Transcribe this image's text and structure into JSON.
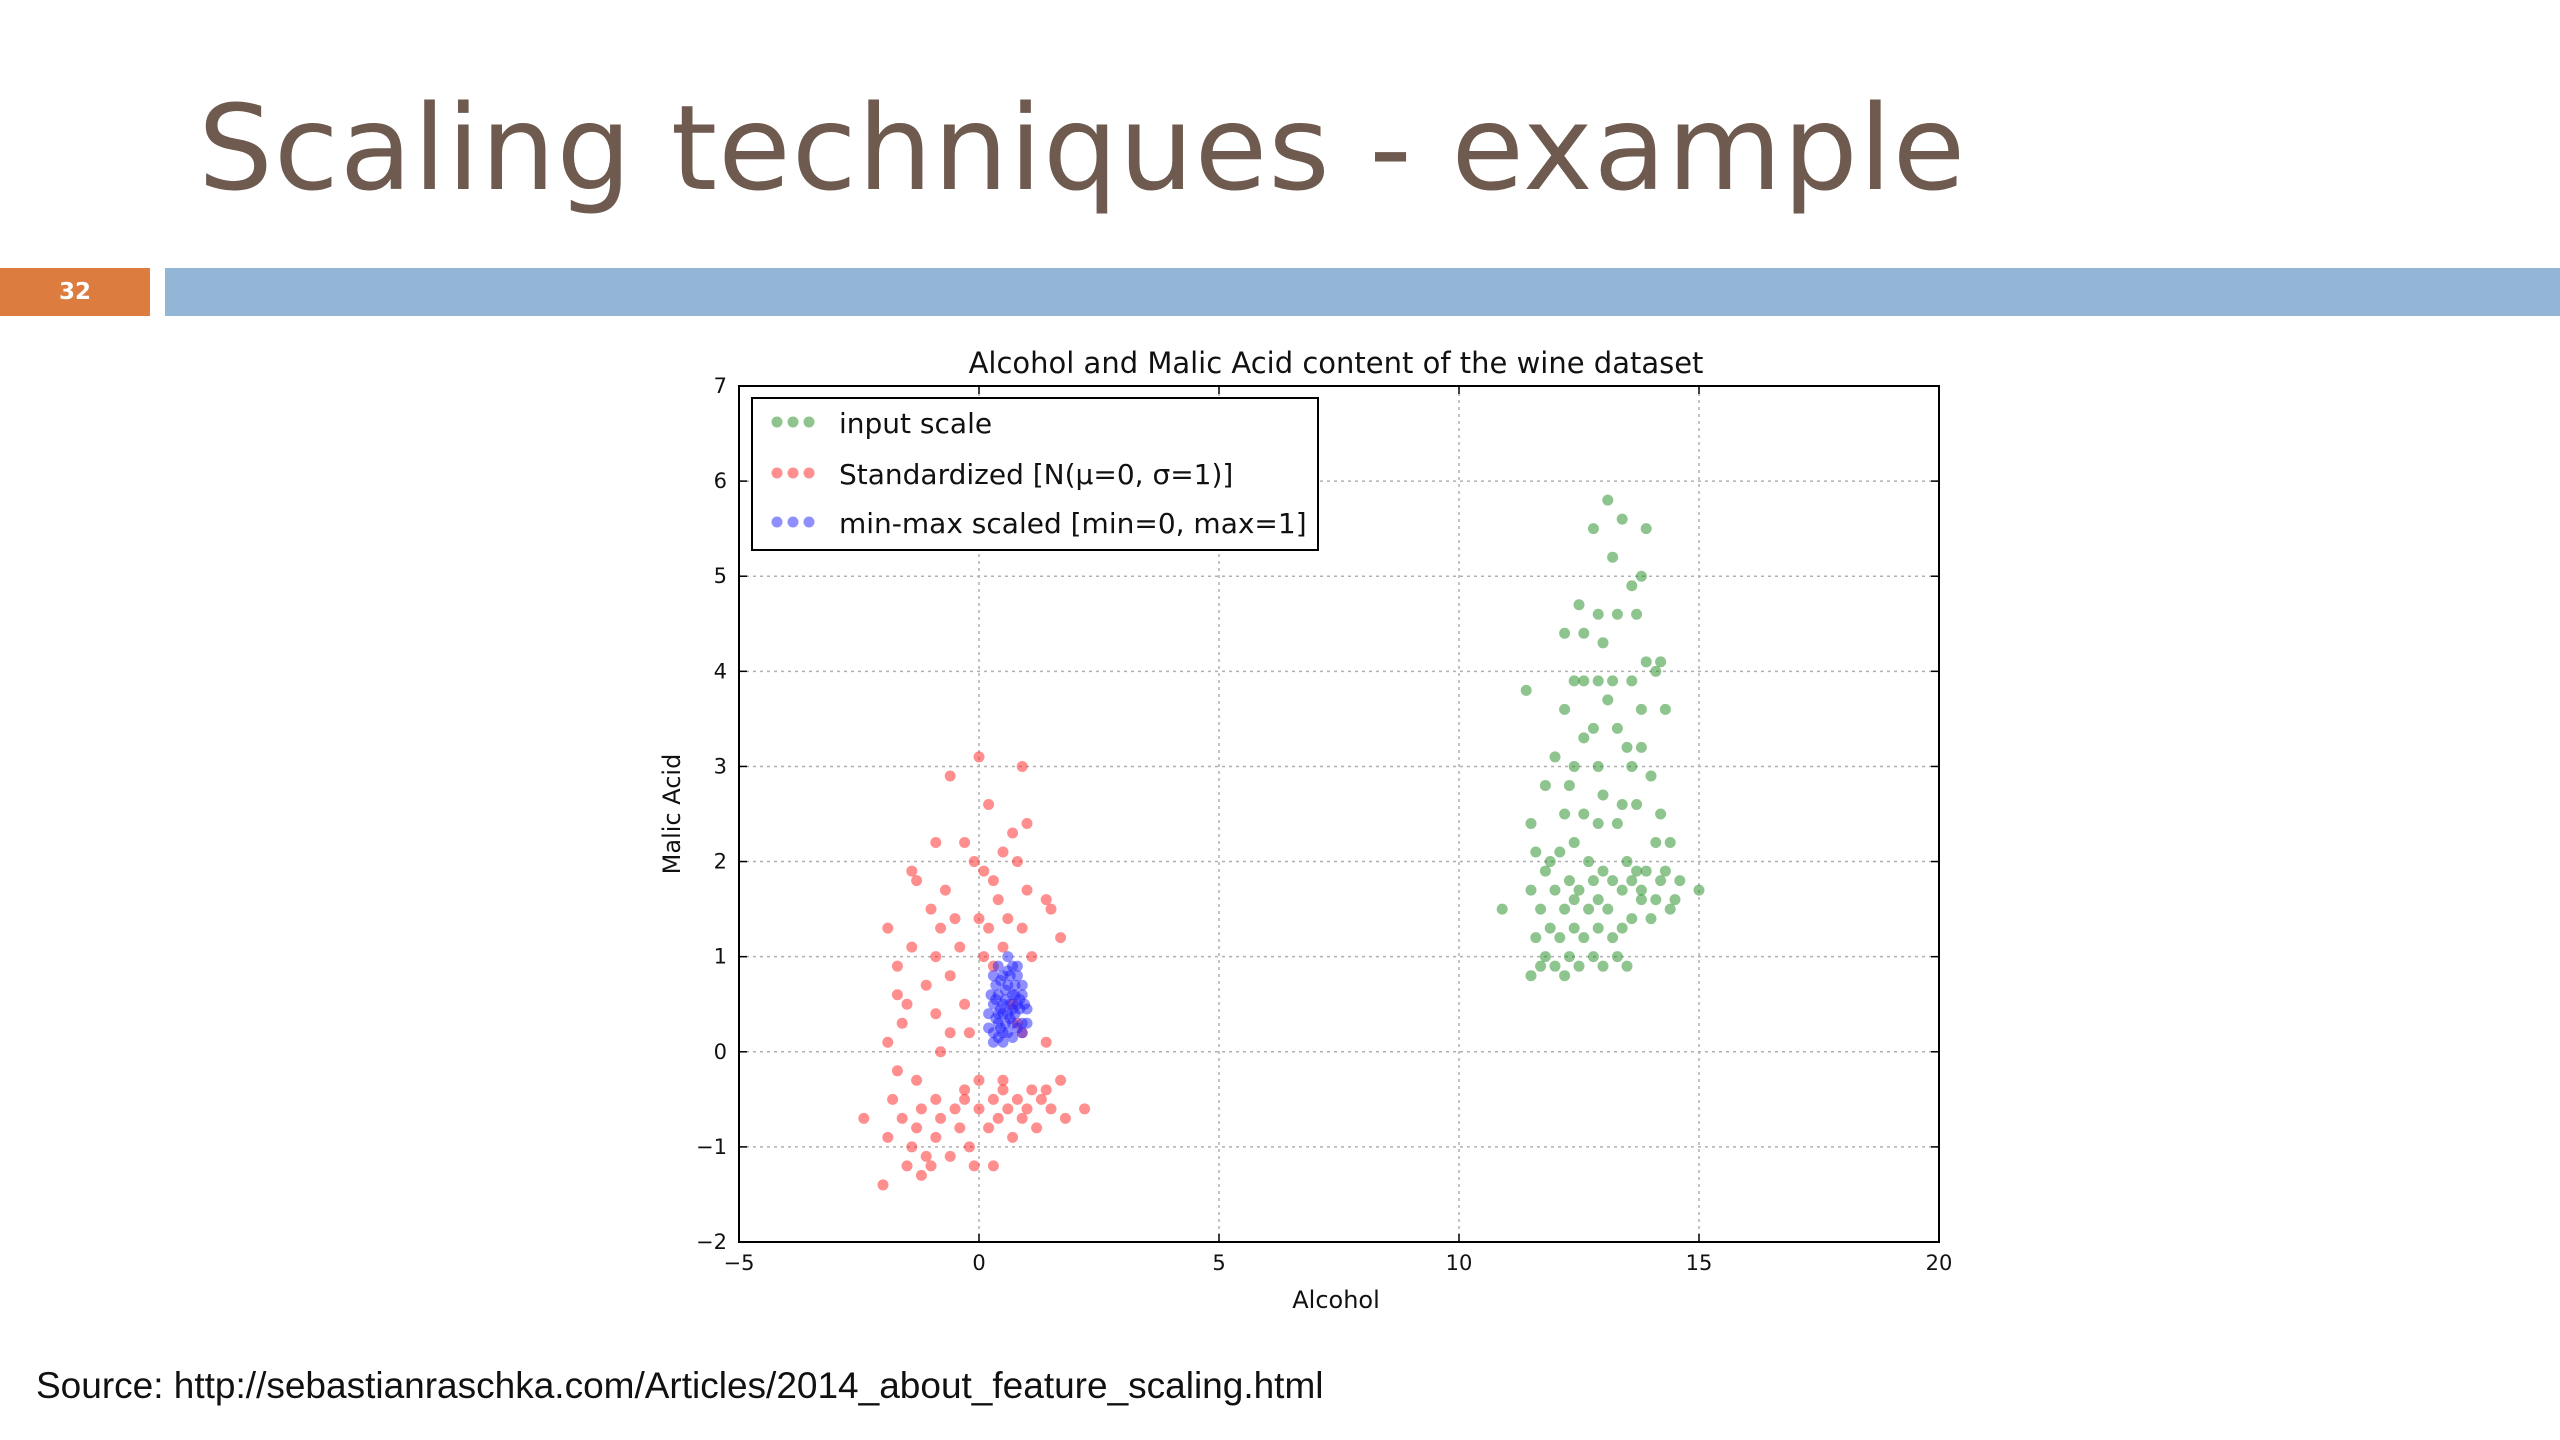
{
  "slide": {
    "title": "Scaling techniques - example",
    "number": "32",
    "source": "Source: http://sebastianraschka.com/Articles/2014_about_feature_scaling.html",
    "colors": {
      "title": "#6e5a4e",
      "number_bg": "#dd7c3f",
      "bar": "#93b5d6"
    }
  },
  "chart_data": {
    "type": "scatter",
    "title": "Alcohol and Malic Acid content of the wine dataset",
    "xlabel": "Alcohol",
    "ylabel": "Malic Acid",
    "xlim": [
      -5,
      20
    ],
    "ylim": [
      -2,
      7
    ],
    "xticks": [
      "−5",
      "0",
      "5",
      "10",
      "15",
      "20"
    ],
    "yticks": [
      "−2",
      "−1",
      "0",
      "1",
      "2",
      "3",
      "4",
      "5",
      "6",
      "7"
    ],
    "grid": true,
    "legend_position": "top-left",
    "series": [
      {
        "name": "input scale",
        "color": "#1e8a1e",
        "points": [
          [
            13.1,
            5.8
          ],
          [
            13.4,
            5.6
          ],
          [
            12.8,
            5.5
          ],
          [
            13.9,
            5.5
          ],
          [
            13.2,
            5.2
          ],
          [
            13.8,
            5.0
          ],
          [
            13.6,
            4.9
          ],
          [
            12.9,
            4.6
          ],
          [
            12.5,
            4.7
          ],
          [
            13.3,
            4.6
          ],
          [
            13.7,
            4.6
          ],
          [
            12.2,
            4.4
          ],
          [
            12.6,
            4.4
          ],
          [
            13.0,
            4.3
          ],
          [
            13.9,
            4.1
          ],
          [
            14.2,
            4.1
          ],
          [
            14.1,
            4.0
          ],
          [
            12.6,
            3.9
          ],
          [
            13.2,
            3.9
          ],
          [
            13.6,
            3.9
          ],
          [
            12.4,
            3.9
          ],
          [
            12.9,
            3.9
          ],
          [
            11.4,
            3.8
          ],
          [
            13.1,
            3.7
          ],
          [
            12.2,
            3.6
          ],
          [
            13.8,
            3.6
          ],
          [
            14.3,
            3.6
          ],
          [
            12.8,
            3.4
          ],
          [
            13.3,
            3.4
          ],
          [
            13.5,
            3.2
          ],
          [
            13.8,
            3.2
          ],
          [
            12.6,
            3.3
          ],
          [
            12.0,
            3.1
          ],
          [
            12.4,
            3.0
          ],
          [
            12.9,
            3.0
          ],
          [
            13.6,
            3.0
          ],
          [
            14.0,
            2.9
          ],
          [
            11.8,
            2.8
          ],
          [
            12.3,
            2.8
          ],
          [
            13.0,
            2.7
          ],
          [
            13.4,
            2.6
          ],
          [
            13.7,
            2.6
          ],
          [
            12.6,
            2.5
          ],
          [
            12.2,
            2.5
          ],
          [
            12.9,
            2.4
          ],
          [
            11.5,
            2.4
          ],
          [
            13.3,
            2.4
          ],
          [
            14.2,
            2.5
          ],
          [
            11.6,
            2.1
          ],
          [
            12.1,
            2.1
          ],
          [
            12.7,
            2.0
          ],
          [
            13.5,
            2.0
          ],
          [
            14.1,
            2.2
          ],
          [
            14.4,
            2.2
          ],
          [
            11.8,
            1.9
          ],
          [
            12.3,
            1.8
          ],
          [
            12.8,
            1.8
          ],
          [
            13.2,
            1.8
          ],
          [
            13.6,
            1.8
          ],
          [
            13.9,
            1.9
          ],
          [
            14.2,
            1.8
          ],
          [
            14.6,
            1.8
          ],
          [
            11.5,
            1.7
          ],
          [
            12.0,
            1.7
          ],
          [
            12.4,
            1.6
          ],
          [
            12.9,
            1.6
          ],
          [
            13.4,
            1.7
          ],
          [
            13.8,
            1.7
          ],
          [
            14.1,
            1.6
          ],
          [
            14.5,
            1.6
          ],
          [
            15.0,
            1.7
          ],
          [
            10.9,
            1.5
          ],
          [
            11.7,
            1.5
          ],
          [
            12.2,
            1.5
          ],
          [
            12.7,
            1.5
          ],
          [
            13.1,
            1.5
          ],
          [
            13.6,
            1.4
          ],
          [
            14.0,
            1.4
          ],
          [
            14.4,
            1.5
          ],
          [
            11.9,
            1.3
          ],
          [
            12.4,
            1.3
          ],
          [
            12.9,
            1.3
          ],
          [
            13.4,
            1.3
          ],
          [
            11.6,
            1.2
          ],
          [
            12.1,
            1.2
          ],
          [
            12.6,
            1.2
          ],
          [
            13.2,
            1.2
          ],
          [
            11.8,
            1.0
          ],
          [
            12.3,
            1.0
          ],
          [
            12.8,
            1.0
          ],
          [
            13.3,
            1.0
          ],
          [
            12.0,
            0.9
          ],
          [
            12.5,
            0.9
          ],
          [
            13.0,
            0.9
          ],
          [
            13.5,
            0.9
          ],
          [
            11.5,
            0.8
          ],
          [
            12.2,
            0.8
          ],
          [
            11.7,
            0.9
          ],
          [
            13.8,
            1.6
          ],
          [
            14.3,
            1.9
          ],
          [
            12.5,
            1.7
          ],
          [
            13.0,
            1.9
          ],
          [
            11.9,
            2.0
          ],
          [
            12.4,
            2.2
          ],
          [
            13.7,
            1.9
          ]
        ]
      },
      {
        "name": "Standardized [N(μ=0, σ=1)]",
        "color": "#ff2020",
        "points": [
          [
            0.0,
            3.1
          ],
          [
            0.9,
            3.0
          ],
          [
            -0.6,
            2.9
          ],
          [
            0.2,
            2.6
          ],
          [
            1.0,
            2.4
          ],
          [
            0.7,
            2.3
          ],
          [
            -0.3,
            2.2
          ],
          [
            -0.9,
            2.2
          ],
          [
            0.5,
            2.1
          ],
          [
            -0.1,
            2.0
          ],
          [
            0.8,
            2.0
          ],
          [
            -1.4,
            1.9
          ],
          [
            0.1,
            1.9
          ],
          [
            -1.3,
            1.8
          ],
          [
            0.3,
            1.8
          ],
          [
            1.0,
            1.7
          ],
          [
            -0.7,
            1.7
          ],
          [
            0.4,
            1.6
          ],
          [
            1.4,
            1.6
          ],
          [
            -1.0,
            1.5
          ],
          [
            1.5,
            1.5
          ],
          [
            0.0,
            1.4
          ],
          [
            -0.5,
            1.4
          ],
          [
            0.6,
            1.4
          ],
          [
            -0.8,
            1.3
          ],
          [
            0.2,
            1.3
          ],
          [
            -1.9,
            1.3
          ],
          [
            0.9,
            1.3
          ],
          [
            -1.4,
            1.1
          ],
          [
            -0.4,
            1.1
          ],
          [
            0.5,
            1.1
          ],
          [
            1.7,
            1.2
          ],
          [
            -0.9,
            1.0
          ],
          [
            0.1,
            1.0
          ],
          [
            1.1,
            1.0
          ],
          [
            -1.7,
            0.9
          ],
          [
            -0.6,
            0.8
          ],
          [
            -1.1,
            0.7
          ],
          [
            0.3,
            0.9
          ],
          [
            -1.5,
            0.5
          ],
          [
            -0.3,
            0.5
          ],
          [
            0.7,
            0.5
          ],
          [
            -0.9,
            0.4
          ],
          [
            -1.6,
            0.3
          ],
          [
            -0.2,
            0.2
          ],
          [
            0.8,
            0.3
          ],
          [
            -0.6,
            0.2
          ],
          [
            -1.9,
            0.1
          ],
          [
            1.4,
            0.1
          ],
          [
            -0.8,
            0.0
          ],
          [
            -1.7,
            -0.2
          ],
          [
            0.0,
            -0.3
          ],
          [
            -1.3,
            -0.3
          ],
          [
            1.7,
            -0.3
          ],
          [
            -0.3,
            -0.4
          ],
          [
            0.5,
            -0.4
          ],
          [
            1.1,
            -0.4
          ],
          [
            -1.8,
            -0.5
          ],
          [
            -0.9,
            -0.5
          ],
          [
            0.3,
            -0.5
          ],
          [
            0.8,
            -0.5
          ],
          [
            1.3,
            -0.5
          ],
          [
            -1.2,
            -0.6
          ],
          [
            -0.5,
            -0.6
          ],
          [
            0.0,
            -0.6
          ],
          [
            0.6,
            -0.6
          ],
          [
            1.0,
            -0.6
          ],
          [
            1.5,
            -0.6
          ],
          [
            2.2,
            -0.6
          ],
          [
            -1.6,
            -0.7
          ],
          [
            -0.8,
            -0.7
          ],
          [
            0.4,
            -0.7
          ],
          [
            0.9,
            -0.7
          ],
          [
            1.8,
            -0.7
          ],
          [
            -2.4,
            -0.7
          ],
          [
            -1.3,
            -0.8
          ],
          [
            -0.4,
            -0.8
          ],
          [
            0.2,
            -0.8
          ],
          [
            1.2,
            -0.8
          ],
          [
            -1.9,
            -0.9
          ],
          [
            -0.9,
            -0.9
          ],
          [
            0.7,
            -0.9
          ],
          [
            -1.4,
            -1.0
          ],
          [
            -0.2,
            -1.0
          ],
          [
            -1.1,
            -1.1
          ],
          [
            -0.6,
            -1.1
          ],
          [
            0.3,
            -1.2
          ],
          [
            -1.5,
            -1.2
          ],
          [
            -0.1,
            -1.2
          ],
          [
            -1.0,
            -1.2
          ],
          [
            -2.0,
            -1.4
          ],
          [
            -1.2,
            -1.3
          ],
          [
            -0.3,
            -0.5
          ],
          [
            0.5,
            -0.3
          ],
          [
            1.4,
            -0.4
          ],
          [
            -1.7,
            0.6
          ],
          [
            0.9,
            0.2
          ]
        ]
      },
      {
        "name": "min-max scaled [min=0, max=1]",
        "color": "#2020ff",
        "points": [
          [
            0.3,
            0.2
          ],
          [
            0.4,
            0.3
          ],
          [
            0.5,
            0.2
          ],
          [
            0.6,
            0.4
          ],
          [
            0.7,
            0.3
          ],
          [
            0.8,
            0.5
          ],
          [
            0.9,
            0.3
          ],
          [
            0.3,
            0.5
          ],
          [
            0.4,
            0.6
          ],
          [
            0.5,
            0.5
          ],
          [
            0.6,
            0.7
          ],
          [
            0.7,
            0.6
          ],
          [
            0.8,
            0.8
          ],
          [
            0.9,
            0.6
          ],
          [
            0.3,
            0.8
          ],
          [
            0.4,
            0.9
          ],
          [
            0.5,
            0.8
          ],
          [
            0.6,
            1.0
          ],
          [
            0.7,
            0.9
          ],
          [
            0.8,
            0.9
          ],
          [
            0.9,
            0.7
          ],
          [
            0.2,
            0.4
          ],
          [
            0.35,
            0.35
          ],
          [
            0.45,
            0.45
          ],
          [
            0.55,
            0.3
          ],
          [
            0.65,
            0.5
          ],
          [
            0.75,
            0.4
          ],
          [
            0.85,
            0.45
          ],
          [
            0.25,
            0.6
          ],
          [
            0.35,
            0.7
          ],
          [
            0.45,
            0.75
          ],
          [
            0.55,
            0.65
          ],
          [
            0.65,
            0.8
          ],
          [
            0.75,
            0.7
          ],
          [
            0.95,
            0.5
          ],
          [
            0.3,
            0.1
          ],
          [
            0.5,
            0.1
          ],
          [
            0.7,
            0.15
          ],
          [
            0.9,
            0.2
          ],
          [
            0.4,
            0.15
          ],
          [
            0.6,
            0.2
          ],
          [
            1.0,
            0.3
          ],
          [
            0.2,
            0.25
          ],
          [
            0.5,
            0.4
          ],
          [
            0.7,
            0.45
          ],
          [
            0.6,
            0.85
          ],
          [
            0.4,
            0.4
          ],
          [
            0.8,
            0.25
          ],
          [
            1.0,
            0.45
          ],
          [
            0.55,
            0.55
          ],
          [
            0.65,
            0.35
          ],
          [
            0.35,
            0.55
          ],
          [
            0.45,
            0.25
          ],
          [
            0.85,
            0.55
          ],
          [
            0.75,
            0.6
          ]
        ]
      }
    ]
  }
}
